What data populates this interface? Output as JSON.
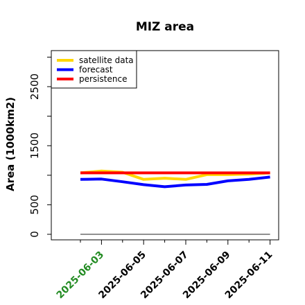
{
  "chart_data": {
    "type": "line",
    "title": "MIZ area",
    "xlabel": "",
    "ylabel": "Area (1000km2)",
    "x": [
      "2025-06-02",
      "2025-06-03",
      "2025-06-04",
      "2025-06-05",
      "2025-06-06",
      "2025-06-07",
      "2025-06-08",
      "2025-06-09",
      "2025-06-10",
      "2025-06-11"
    ],
    "xticks": [
      "2025-06-03",
      "2025-06-05",
      "2025-06-07",
      "2025-06-09",
      "2025-06-11"
    ],
    "xtick_colors": [
      "#228b22",
      "#000000",
      "#000000",
      "#000000",
      "#000000"
    ],
    "yticks": [
      0,
      500,
      1500,
      2500
    ],
    "ylim": [
      -100,
      3100
    ],
    "grid": false,
    "legend_position": "top-left",
    "series": [
      {
        "name": "satellite data",
        "color": "#ffd700",
        "values": [
          1040,
          1070,
          1050,
          930,
          950,
          930,
          1010,
          1010,
          1020,
          1040
        ]
      },
      {
        "name": "forecast",
        "color": "#0000ff",
        "values": [
          930,
          935,
          890,
          840,
          805,
          835,
          845,
          905,
          930,
          970
        ]
      },
      {
        "name": "persistence",
        "color": "#ff0000",
        "values": [
          1040,
          1040,
          1040,
          1040,
          1040,
          1040,
          1040,
          1040,
          1040,
          1040
        ]
      },
      {
        "name": "",
        "color": "#808080",
        "values": [
          0,
          0,
          0,
          0,
          0,
          0,
          0,
          0,
          0,
          0
        ]
      }
    ]
  }
}
